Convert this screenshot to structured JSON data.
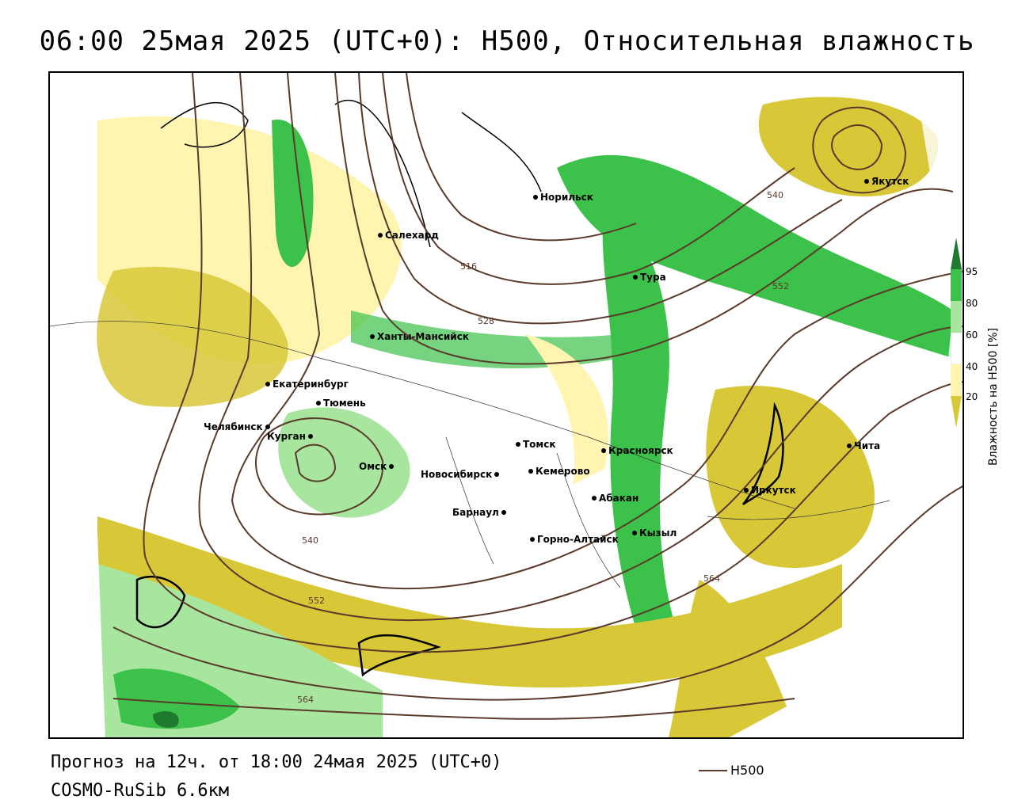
{
  "title": "06:00 25мая 2025 (UTC+0): H500, Относительная влажность",
  "forecast_line": "Прогноз на 12ч. от 18:00 24мая 2025 (UTC+0)",
  "model_line": "COSMO-RuSib 6.6км",
  "legend": {
    "line_label": "H500",
    "line_color": "#5a3a2a"
  },
  "colorbar": {
    "title": "Влажность на H500 [%]",
    "ticks": [
      "95",
      "80",
      "60",
      "40",
      "20"
    ],
    "colors": [
      "#1e7a2e",
      "#3cc24a",
      "#a8e6a0",
      "#ffffff",
      "#fff5b0",
      "#d8c838"
    ]
  },
  "cities": [
    {
      "name": "Норильск"
    },
    {
      "name": "Якутск"
    },
    {
      "name": "Салехард"
    },
    {
      "name": "Тура"
    },
    {
      "name": "Ханты-Мансийск"
    },
    {
      "name": "Екатеринбург"
    },
    {
      "name": "Тюмень"
    },
    {
      "name": "Челябинск"
    },
    {
      "name": "Курган"
    },
    {
      "name": "Омск"
    },
    {
      "name": "Новосибирск"
    },
    {
      "name": "Томск"
    },
    {
      "name": "Кемерово"
    },
    {
      "name": "Красноярск"
    },
    {
      "name": "Абакан"
    },
    {
      "name": "Барнаул"
    },
    {
      "name": "Горно-Алтайск"
    },
    {
      "name": "Кызыл"
    },
    {
      "name": "Иркутск"
    },
    {
      "name": "Чита"
    }
  ],
  "contour_labels": [
    "516",
    "528",
    "540",
    "552",
    "540",
    "552",
    "564",
    "564"
  ],
  "colors": {
    "dry": "#d8c838",
    "semi_dry": "#fff5b0",
    "moist": "#a8e6a0",
    "wet": "#3cc24a",
    "very_wet": "#1e7a2e",
    "contour": "#5a3a2a"
  }
}
